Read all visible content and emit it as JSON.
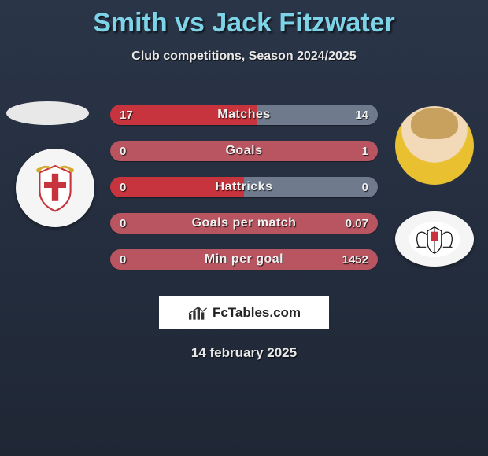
{
  "title": "Smith vs Jack Fitzwater",
  "subtitle": "Club competitions, Season 2024/2025",
  "date": "14 february 2025",
  "watermark": {
    "text": "FcTables.com"
  },
  "colors": {
    "left_team": "#c8343d",
    "right_team": "#ffffff",
    "bar_accent_outer": "#6f7a8c",
    "bar_accent_mid": "#b85560"
  },
  "bars": [
    {
      "label": "Matches",
      "left_val": "17",
      "right_val": "14",
      "left_pct": 0.55,
      "left_color": "#c8343d",
      "right_color": "#6f7a8c"
    },
    {
      "label": "Goals",
      "left_val": "0",
      "right_val": "1",
      "left_pct": 0.0,
      "left_color": "#c8343d",
      "right_color": "#b85560"
    },
    {
      "label": "Hattricks",
      "left_val": "0",
      "right_val": "0",
      "left_pct": 0.5,
      "left_color": "#c8343d",
      "right_color": "#6f7a8c"
    },
    {
      "label": "Goals per match",
      "left_val": "0",
      "right_val": "0.07",
      "left_pct": 0.0,
      "left_color": "#c8343d",
      "right_color": "#b85560"
    },
    {
      "label": "Min per goal",
      "left_val": "0",
      "right_val": "1452",
      "left_pct": 0.0,
      "left_color": "#c8343d",
      "right_color": "#b85560"
    }
  ]
}
